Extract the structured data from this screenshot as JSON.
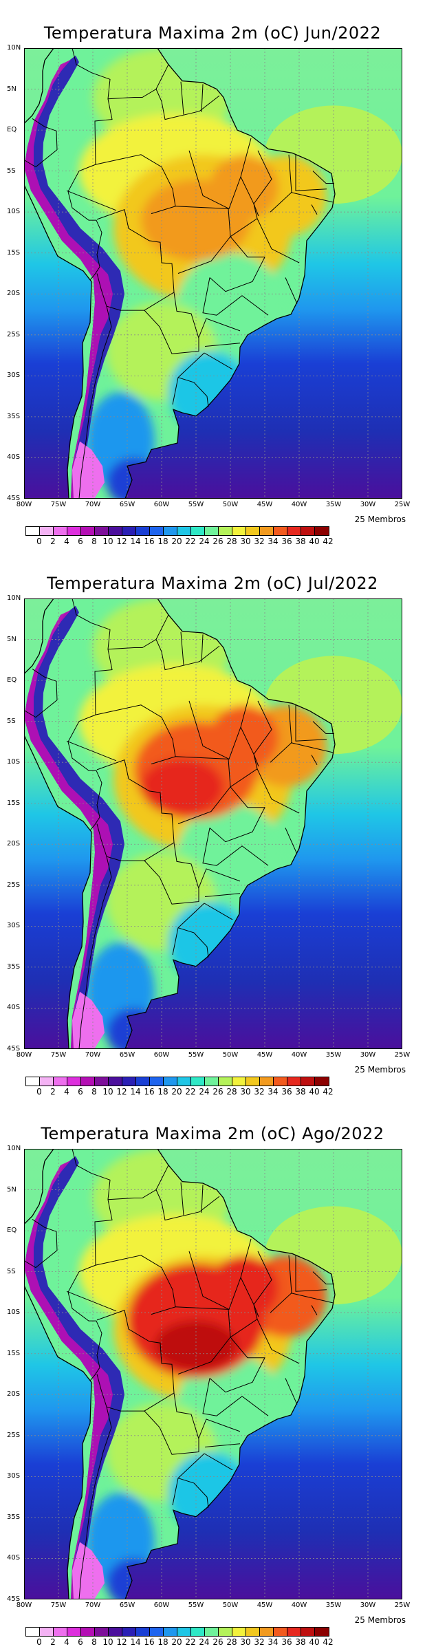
{
  "colors": {
    "scale": [
      "#ffffff",
      "#f4b2f4",
      "#ee6fee",
      "#dd2fdd",
      "#b40fb4",
      "#7d0f9a",
      "#4b0f9c",
      "#2a1fb5",
      "#1a3fd5",
      "#1e64ee",
      "#1f97ee",
      "#1fc6e6",
      "#2fe8c6",
      "#6ff29a",
      "#b4f25a",
      "#f2f23c",
      "#f2c81e",
      "#f29a1e",
      "#f25a1e",
      "#e6281e",
      "#be0f0f",
      "#8c0000"
    ],
    "ocean_south": "#1e2fb4",
    "ocean_north": "#7cef9a",
    "land": "#f2c81e",
    "grid": "#8a8a8a",
    "border": "#000000"
  },
  "chart_data": [
    {
      "type": "heatmap",
      "title": "Temperatura Maxima 2m (oC) Jun/2022",
      "note": "25 Membros",
      "xlim": [
        -80,
        -25
      ],
      "ylim": [
        -45,
        10
      ],
      "x_ticks": [
        "80W",
        "75W",
        "70W",
        "65W",
        "60W",
        "55W",
        "50W",
        "45W",
        "40W",
        "35W",
        "30W",
        "25W"
      ],
      "y_ticks": [
        "10N",
        "5N",
        "EQ",
        "5S",
        "10S",
        "15S",
        "20S",
        "25S",
        "30S",
        "35S",
        "40S",
        "45S"
      ],
      "colorbar_ticks": [
        "0",
        "2",
        "4",
        "6",
        "8",
        "10",
        "12",
        "14",
        "16",
        "18",
        "20",
        "22",
        "24",
        "26",
        "28",
        "30",
        "32",
        "34",
        "36",
        "38",
        "40",
        "42"
      ],
      "max_region_value": 36
    },
    {
      "type": "heatmap",
      "title": "Temperatura Maxima 2m (oC) Jul/2022",
      "note": "25 Membros",
      "xlim": [
        -80,
        -25
      ],
      "ylim": [
        -45,
        10
      ],
      "x_ticks": [
        "80W",
        "75W",
        "70W",
        "65W",
        "60W",
        "55W",
        "50W",
        "45W",
        "40W",
        "35W",
        "30W",
        "25W"
      ],
      "y_ticks": [
        "10N",
        "5N",
        "EQ",
        "5S",
        "10S",
        "15S",
        "20S",
        "25S",
        "30S",
        "35S",
        "40S",
        "45S"
      ],
      "colorbar_ticks": [
        "0",
        "2",
        "4",
        "6",
        "8",
        "10",
        "12",
        "14",
        "16",
        "18",
        "20",
        "22",
        "24",
        "26",
        "28",
        "30",
        "32",
        "34",
        "36",
        "38",
        "40",
        "42"
      ],
      "max_region_value": 38
    },
    {
      "type": "heatmap",
      "title": "Temperatura Maxima 2m (oC) Ago/2022",
      "note": "25 Membros",
      "xlim": [
        -80,
        -25
      ],
      "ylim": [
        -45,
        10
      ],
      "x_ticks": [
        "80W",
        "75W",
        "70W",
        "65W",
        "60W",
        "55W",
        "50W",
        "45W",
        "40W",
        "35W",
        "30W",
        "25W"
      ],
      "y_ticks": [
        "10N",
        "5N",
        "EQ",
        "5S",
        "10S",
        "15S",
        "20S",
        "25S",
        "30S",
        "35S",
        "40S",
        "45S"
      ],
      "colorbar_ticks": [
        "0",
        "2",
        "4",
        "6",
        "8",
        "10",
        "12",
        "14",
        "16",
        "18",
        "20",
        "22",
        "24",
        "26",
        "28",
        "30",
        "32",
        "34",
        "36",
        "38",
        "40",
        "42"
      ],
      "max_region_value": 40
    }
  ]
}
